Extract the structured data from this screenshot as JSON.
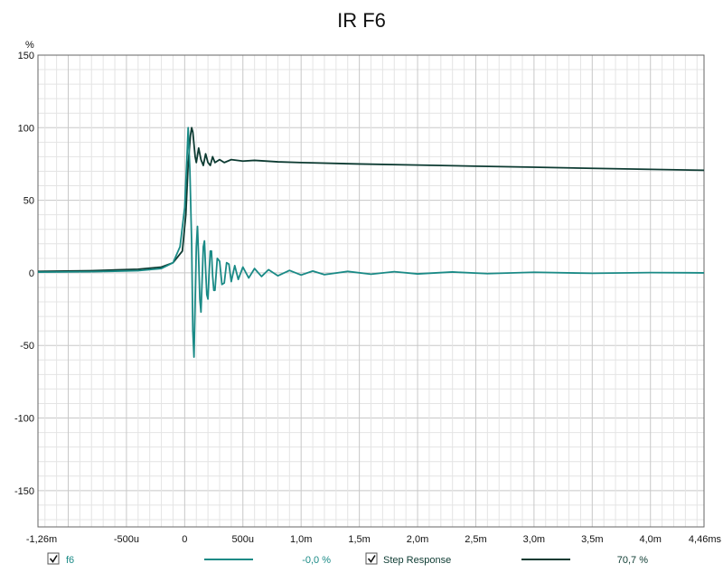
{
  "chart_data": {
    "type": "line",
    "title": "IR F6",
    "ylabel": "%",
    "xlim": [
      -0.00126,
      0.00446
    ],
    "ylim": [
      -175,
      150
    ],
    "yticks": [
      {
        "v": 150,
        "label": "150"
      },
      {
        "v": 100,
        "label": "100"
      },
      {
        "v": 50,
        "label": "50"
      },
      {
        "v": 0,
        "label": "0"
      },
      {
        "v": -50,
        "label": "-50"
      },
      {
        "v": -100,
        "label": "-100"
      },
      {
        "v": -150,
        "label": "-150"
      }
    ],
    "xticks": [
      {
        "v": -0.00126,
        "label": "-1,26m"
      },
      {
        "v": -0.0005,
        "label": "-500u"
      },
      {
        "v": 0,
        "label": "0"
      },
      {
        "v": 0.0005,
        "label": "500u"
      },
      {
        "v": 0.001,
        "label": "1,0m"
      },
      {
        "v": 0.0015,
        "label": "1,5m"
      },
      {
        "v": 0.002,
        "label": "2,0m"
      },
      {
        "v": 0.0025,
        "label": "2,5m"
      },
      {
        "v": 0.003,
        "label": "3,0m"
      },
      {
        "v": 0.0035,
        "label": "3,5m"
      },
      {
        "v": 0.004,
        "label": "4,0m"
      },
      {
        "v": 0.00446,
        "label": "4,46ms"
      }
    ],
    "grid": true,
    "series": [
      {
        "name": "f6",
        "value_label": "-0,0 %",
        "color": "#1a8a86",
        "points": [
          [
            -0.00126,
            0.5
          ],
          [
            -0.0008,
            0.8
          ],
          [
            -0.0004,
            1.5
          ],
          [
            -0.0002,
            3
          ],
          [
            -0.0001,
            7
          ],
          [
            -4e-05,
            18
          ],
          [
            0,
            45
          ],
          [
            2e-05,
            80
          ],
          [
            3e-05,
            100
          ],
          [
            4.5e-05,
            70
          ],
          [
            6e-05,
            20
          ],
          [
            7e-05,
            -40
          ],
          [
            8e-05,
            -58
          ],
          [
            9e-05,
            -20
          ],
          [
            0.0001,
            18
          ],
          [
            0.00011,
            32
          ],
          [
            0.00012,
            10
          ],
          [
            0.00013,
            -18
          ],
          [
            0.00014,
            -27
          ],
          [
            0.00015,
            -5
          ],
          [
            0.00016,
            18
          ],
          [
            0.00017,
            22
          ],
          [
            0.00018,
            2
          ],
          [
            0.00019,
            -15
          ],
          [
            0.0002,
            -18
          ],
          [
            0.00021,
            0
          ],
          [
            0.00022,
            15
          ],
          [
            0.00023,
            15
          ],
          [
            0.00024,
            -2
          ],
          [
            0.00025,
            -12
          ],
          [
            0.00026,
            -12
          ],
          [
            0.00028,
            10
          ],
          [
            0.0003,
            8
          ],
          [
            0.00032,
            -8
          ],
          [
            0.00034,
            -7
          ],
          [
            0.00036,
            7
          ],
          [
            0.00038,
            6
          ],
          [
            0.0004,
            -6
          ],
          [
            0.00043,
            5
          ],
          [
            0.00046,
            -4.5
          ],
          [
            0.0005,
            4
          ],
          [
            0.00055,
            -3.5
          ],
          [
            0.0006,
            3
          ],
          [
            0.00066,
            -2.5
          ],
          [
            0.00072,
            2.2
          ],
          [
            0.0008,
            -2
          ],
          [
            0.0009,
            1.7
          ],
          [
            0.001,
            -1.5
          ],
          [
            0.0011,
            1.3
          ],
          [
            0.0012,
            -1.2
          ],
          [
            0.0014,
            1
          ],
          [
            0.0016,
            -0.9
          ],
          [
            0.0018,
            0.8
          ],
          [
            0.002,
            -0.7
          ],
          [
            0.0023,
            0.6
          ],
          [
            0.0026,
            -0.5
          ],
          [
            0.003,
            0.4
          ],
          [
            0.0035,
            -0.3
          ],
          [
            0.004,
            0.2
          ],
          [
            0.00446,
            0
          ]
        ]
      },
      {
        "name": "Step Response",
        "value_label": "70,7 %",
        "color": "#0d3b32",
        "points": [
          [
            -0.00126,
            1
          ],
          [
            -0.0008,
            1.5
          ],
          [
            -0.0004,
            2.5
          ],
          [
            -0.0002,
            4
          ],
          [
            -0.0001,
            7
          ],
          [
            -2e-05,
            15
          ],
          [
            1e-05,
            40
          ],
          [
            3e-05,
            75
          ],
          [
            5e-05,
            95
          ],
          [
            6e-05,
            100
          ],
          [
            7e-05,
            97
          ],
          [
            9e-05,
            80
          ],
          [
            0.0001,
            76
          ],
          [
            0.00012,
            86
          ],
          [
            0.00014,
            78
          ],
          [
            0.00016,
            74
          ],
          [
            0.00018,
            82
          ],
          [
            0.0002,
            76
          ],
          [
            0.00022,
            74
          ],
          [
            0.00024,
            80
          ],
          [
            0.00026,
            76
          ],
          [
            0.0003,
            78
          ],
          [
            0.00034,
            76
          ],
          [
            0.0004,
            78
          ],
          [
            0.0005,
            77
          ],
          [
            0.0006,
            77.5
          ],
          [
            0.0008,
            76.5
          ],
          [
            0.001,
            76
          ],
          [
            0.0015,
            75
          ],
          [
            0.002,
            74.3
          ],
          [
            0.0025,
            73.5
          ],
          [
            0.003,
            72.8
          ],
          [
            0.0035,
            72
          ],
          [
            0.004,
            71.3
          ],
          [
            0.00446,
            70.7
          ]
        ]
      }
    ],
    "legend_placement": "bottom"
  }
}
